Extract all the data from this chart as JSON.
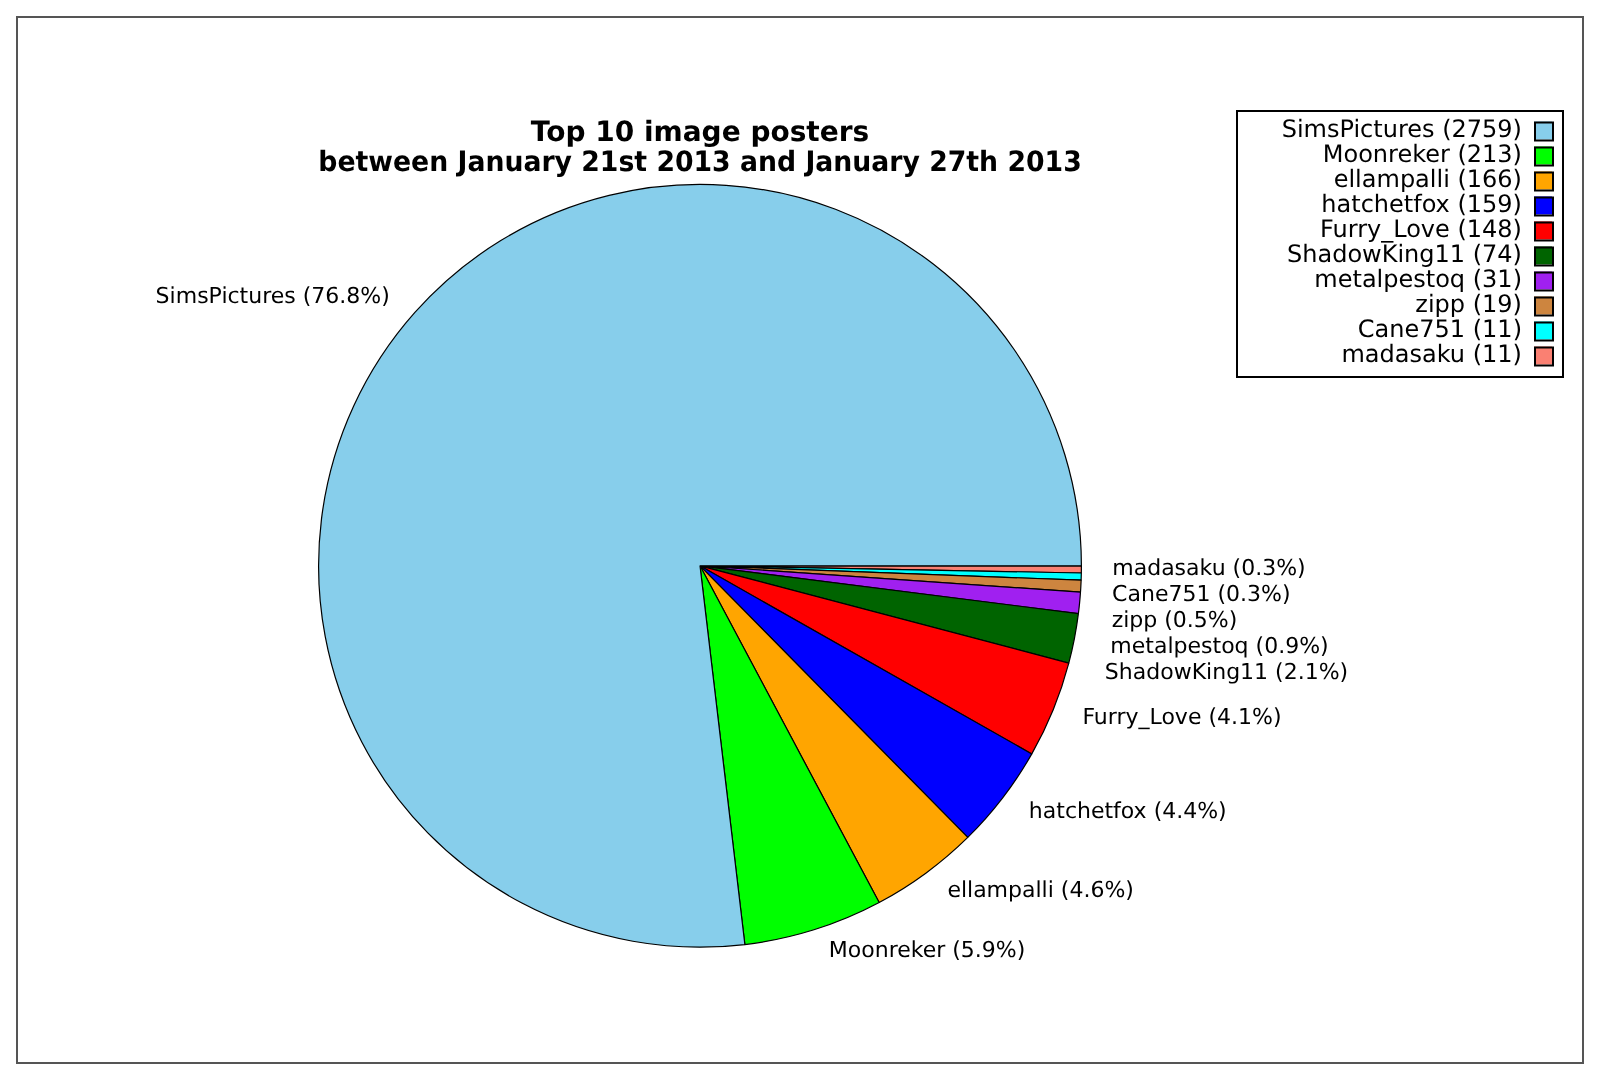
{
  "chart_data": {
    "type": "pie",
    "title": "Top 10 image posters",
    "subtitle": "between January 21st 2013 and January 27th 2013",
    "categories": [
      "SimsPictures (2759)",
      "Moonreker (213)",
      "ellampalli (166)",
      "hatchetfox (159)",
      "Furry_Love (148)",
      "ShadowKing11 (74)",
      "metalpestoq (31)",
      "zipp (19)",
      "Cane751 (11)",
      "madasaku (11)"
    ],
    "values": [
      76.8,
      5.9,
      4.6,
      4.4,
      4.1,
      2.1,
      0.9,
      0.5,
      0.3,
      0.3
    ],
    "value_labels": [
      "SimsPictures (76.8%)",
      "Moonreker (5.9%)",
      "ellampalli (4.6%)",
      "hatchetfox (4.4%)",
      "Furry_Love (4.1%)",
      "ShadowKing11 (2.1%)",
      "metalpestoq (0.9%)",
      "zipp (0.5%)",
      "Cane751 (0.3%)",
      "madasaku (0.3%)"
    ],
    "colors": [
      "#87ceeb",
      "#00ff00",
      "#ffa500",
      "#0000ff",
      "#ff0000",
      "#006400",
      "#a020f0",
      "#cd853f",
      "#00ffff",
      "#fa8072"
    ],
    "legend": "top right"
  }
}
